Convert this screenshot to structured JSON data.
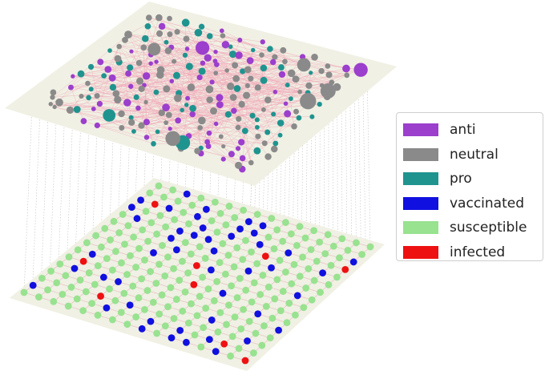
{
  "legend": {
    "items": [
      {
        "label": "anti",
        "color": "#9b3fcc"
      },
      {
        "label": "neutral",
        "color": "#8a8a8a"
      },
      {
        "label": "pro",
        "color": "#1f948f"
      },
      {
        "label": "vaccinated",
        "color": "#1010e0"
      },
      {
        "label": "susceptible",
        "color": "#98e290"
      },
      {
        "label": "infected",
        "color": "#ee1111"
      }
    ]
  },
  "layers": {
    "opinion_layer": {
      "plane_color": "#f0f0e4",
      "edge_color": "#f0a8b8"
    },
    "epidemic_layer": {
      "plane_color": "#f0f0e4",
      "edge_color": "#e8b8c0",
      "grid_size": 16
    }
  }
}
